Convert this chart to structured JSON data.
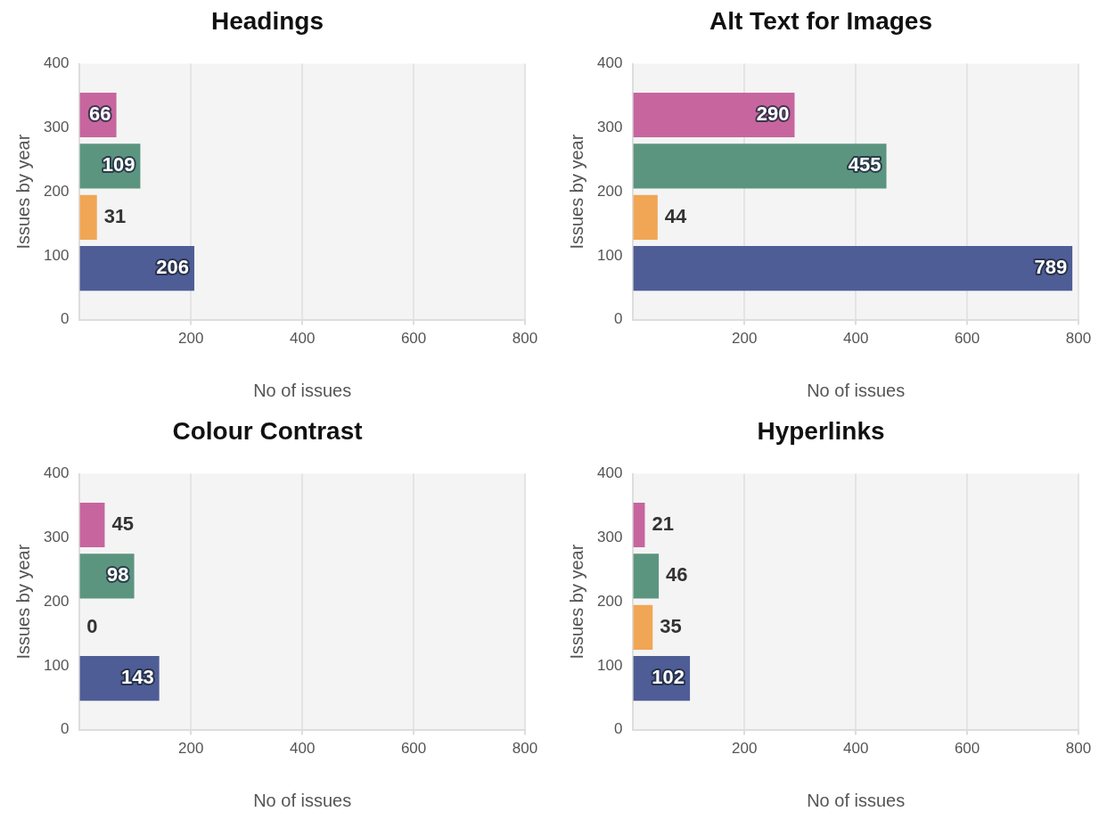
{
  "chart_data": [
    {
      "type": "bar",
      "orientation": "horizontal",
      "title": "Headings",
      "xlabel": "No of issues",
      "ylabel": "Issues by year",
      "x": [
        320,
        240,
        160,
        80
      ],
      "values": [
        66,
        109,
        31,
        206
      ],
      "colors": [
        "#c7659f",
        "#5b9580",
        "#f0a654",
        "#4f5d96"
      ],
      "xlim": [
        0,
        800
      ],
      "xticks": [
        200,
        400,
        600,
        800
      ],
      "ylim": [
        0,
        400
      ],
      "yticks": [
        0,
        100,
        200,
        300,
        400
      ],
      "grid": "x",
      "data_labels": true
    },
    {
      "type": "bar",
      "orientation": "horizontal",
      "title": "Alt Text for Images",
      "xlabel": "No of issues",
      "ylabel": "Issues by year",
      "x": [
        320,
        240,
        160,
        80
      ],
      "values": [
        290,
        455,
        44,
        789
      ],
      "colors": [
        "#c7659f",
        "#5b9580",
        "#f0a654",
        "#4f5d96"
      ],
      "xlim": [
        0,
        800
      ],
      "xticks": [
        200,
        400,
        600,
        800
      ],
      "ylim": [
        0,
        400
      ],
      "yticks": [
        0,
        100,
        200,
        300,
        400
      ],
      "grid": "x",
      "data_labels": true
    },
    {
      "type": "bar",
      "orientation": "horizontal",
      "title": "Colour Contrast",
      "xlabel": "No of issues",
      "ylabel": "Issues by year",
      "x": [
        320,
        240,
        160,
        80
      ],
      "values": [
        45,
        98,
        0,
        143
      ],
      "colors": [
        "#c7659f",
        "#5b9580",
        "#f0a654",
        "#4f5d96"
      ],
      "xlim": [
        0,
        800
      ],
      "xticks": [
        200,
        400,
        600,
        800
      ],
      "ylim": [
        0,
        400
      ],
      "yticks": [
        0,
        100,
        200,
        300,
        400
      ],
      "grid": "x",
      "data_labels": true
    },
    {
      "type": "bar",
      "orientation": "horizontal",
      "title": "Hyperlinks",
      "xlabel": "No of issues",
      "ylabel": "Issues by year",
      "x": [
        320,
        240,
        160,
        80
      ],
      "values": [
        21,
        46,
        35,
        102
      ],
      "colors": [
        "#c7659f",
        "#5b9580",
        "#f0a654",
        "#4f5d96"
      ],
      "xlim": [
        0,
        800
      ],
      "xticks": [
        200,
        400,
        600,
        800
      ],
      "ylim": [
        0,
        400
      ],
      "yticks": [
        0,
        100,
        200,
        300,
        400
      ],
      "grid": "x",
      "data_labels": true
    }
  ]
}
